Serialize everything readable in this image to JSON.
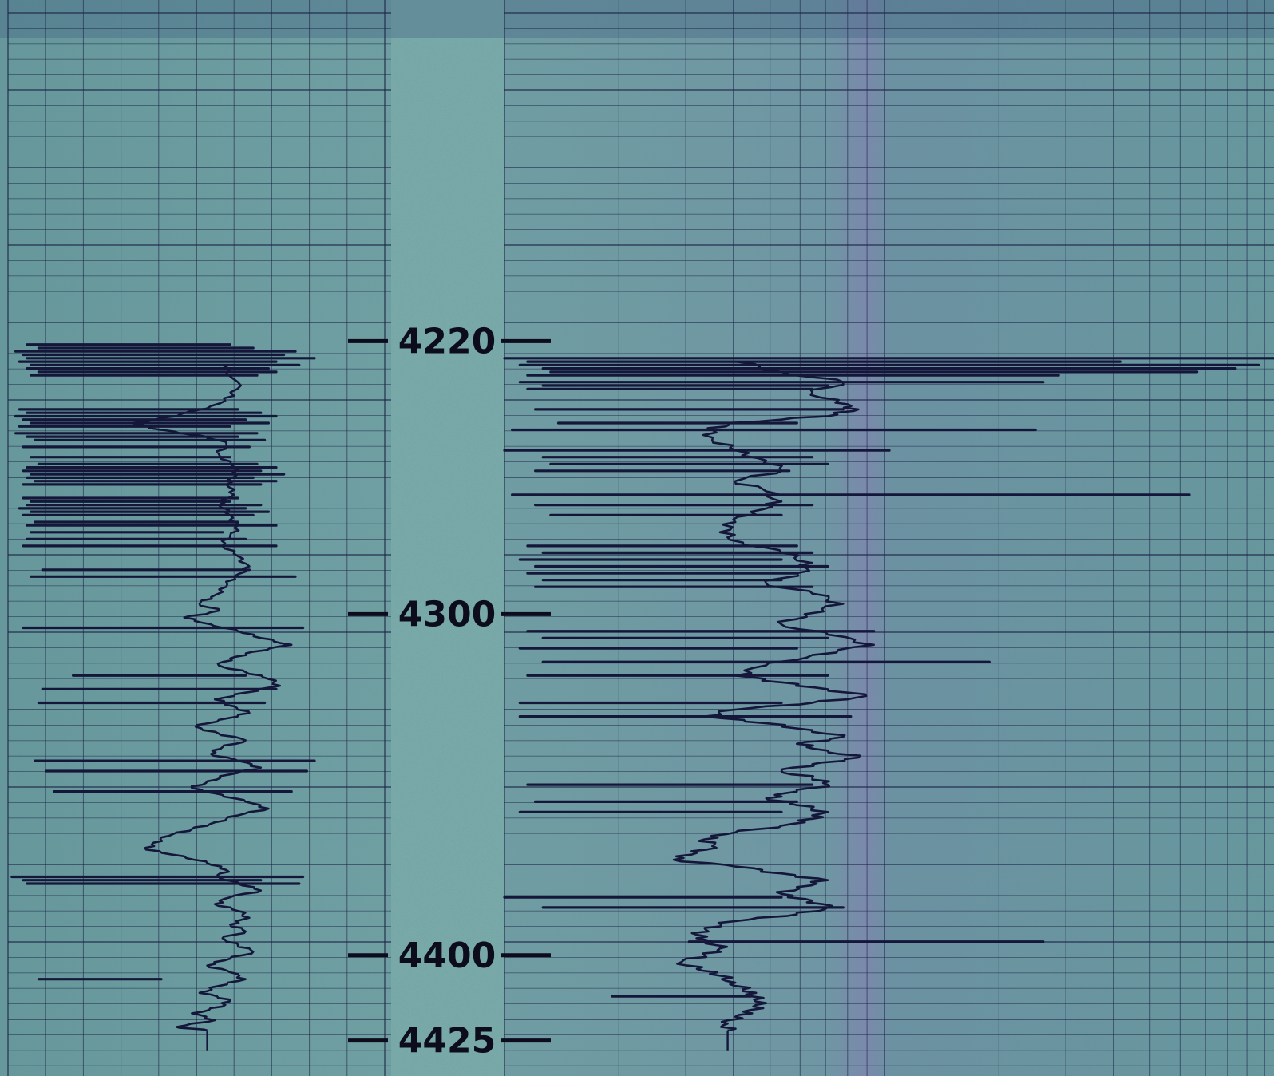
{
  "chart_data": {
    "type": "line",
    "title": "",
    "xlabel": "",
    "ylabel": "",
    "depth_axis": {
      "unit": "",
      "range": [
        4120,
        4430
      ],
      "labels": [
        "4220",
        "4300",
        "4400",
        "4425"
      ],
      "label_values": [
        4220,
        4300,
        4400,
        4425
      ],
      "increasing": "down"
    },
    "tracks": [
      {
        "track": "left",
        "trace": [
          [
            4227,
            0.56
          ],
          [
            4232,
            0.6
          ],
          [
            4236,
            0.59
          ],
          [
            4239,
            0.53
          ],
          [
            4242,
            0.44
          ],
          [
            4244,
            0.32
          ],
          [
            4246,
            0.4
          ],
          [
            4248,
            0.52
          ],
          [
            4250,
            0.57
          ],
          [
            4253,
            0.55
          ],
          [
            4256,
            0.58
          ],
          [
            4259,
            0.6
          ],
          [
            4262,
            0.57
          ],
          [
            4265,
            0.59
          ],
          [
            4268,
            0.55
          ],
          [
            4271,
            0.58
          ],
          [
            4274,
            0.6
          ],
          [
            4277,
            0.58
          ],
          [
            4280,
            0.56
          ],
          [
            4283,
            0.6
          ],
          [
            4286,
            0.63
          ],
          [
            4289,
            0.59
          ],
          [
            4292,
            0.57
          ],
          [
            4295,
            0.53
          ],
          [
            4297,
            0.5
          ],
          [
            4299,
            0.55
          ],
          [
            4301,
            0.46
          ],
          [
            4303,
            0.53
          ],
          [
            4305,
            0.6
          ],
          [
            4307,
            0.66
          ],
          [
            4309,
            0.74
          ],
          [
            4311,
            0.64
          ],
          [
            4313,
            0.58
          ],
          [
            4315,
            0.55
          ],
          [
            4317,
            0.62
          ],
          [
            4319,
            0.68
          ],
          [
            4321,
            0.71
          ],
          [
            4323,
            0.62
          ],
          [
            4325,
            0.54
          ],
          [
            4327,
            0.59
          ],
          [
            4329,
            0.63
          ],
          [
            4331,
            0.55
          ],
          [
            4333,
            0.49
          ],
          [
            4335,
            0.55
          ],
          [
            4337,
            0.62
          ],
          [
            4339,
            0.56
          ],
          [
            4341,
            0.53
          ],
          [
            4343,
            0.6
          ],
          [
            4345,
            0.66
          ],
          [
            4347,
            0.58
          ],
          [
            4349,
            0.52
          ],
          [
            4351,
            0.48
          ],
          [
            4353,
            0.56
          ],
          [
            4355,
            0.62
          ],
          [
            4357,
            0.68
          ],
          [
            4359,
            0.6
          ],
          [
            4361,
            0.54
          ],
          [
            4363,
            0.48
          ],
          [
            4365,
            0.42
          ],
          [
            4367,
            0.38
          ],
          [
            4369,
            0.36
          ],
          [
            4371,
            0.46
          ],
          [
            4373,
            0.52
          ],
          [
            4375,
            0.57
          ],
          [
            4377,
            0.55
          ],
          [
            4379,
            0.6
          ],
          [
            4381,
            0.66
          ],
          [
            4383,
            0.58
          ],
          [
            4385,
            0.54
          ],
          [
            4387,
            0.6
          ],
          [
            4389,
            0.63
          ],
          [
            4391,
            0.58
          ],
          [
            4393,
            0.62
          ],
          [
            4395,
            0.56
          ],
          [
            4397,
            0.6
          ],
          [
            4399,
            0.64
          ],
          [
            4401,
            0.58
          ],
          [
            4403,
            0.52
          ],
          [
            4405,
            0.58
          ],
          [
            4407,
            0.62
          ],
          [
            4409,
            0.55
          ],
          [
            4411,
            0.5
          ],
          [
            4413,
            0.58
          ],
          [
            4415,
            0.56
          ],
          [
            4417,
            0.48
          ],
          [
            4419,
            0.54
          ],
          [
            4421,
            0.44
          ],
          [
            4422,
            0.52
          ]
        ],
        "excursions": [
          [
            4221,
            0.05,
            0.58
          ],
          [
            4222,
            0.08,
            0.64
          ],
          [
            4223,
            0.02,
            0.75
          ],
          [
            4224,
            0.04,
            0.72
          ],
          [
            4225,
            0.05,
            0.8
          ],
          [
            4226,
            0.03,
            0.7
          ],
          [
            4227,
            0.06,
            0.76
          ],
          [
            4228,
            0.05,
            0.68
          ],
          [
            4229,
            0.08,
            0.7
          ],
          [
            4230,
            0.06,
            0.65
          ],
          [
            4240,
            0.03,
            0.6
          ],
          [
            4241,
            0.05,
            0.66
          ],
          [
            4242,
            0.02,
            0.7
          ],
          [
            4243,
            0.04,
            0.62
          ],
          [
            4244,
            0.06,
            0.68
          ],
          [
            4245,
            0.03,
            0.58
          ],
          [
            4247,
            0.02,
            0.65
          ],
          [
            4248,
            0.05,
            0.6
          ],
          [
            4249,
            0.07,
            0.67
          ],
          [
            4251,
            0.04,
            0.63
          ],
          [
            4254,
            0.06,
            0.58
          ],
          [
            4256,
            0.08,
            0.65
          ],
          [
            4257,
            0.05,
            0.7
          ],
          [
            4258,
            0.04,
            0.66
          ],
          [
            4259,
            0.06,
            0.72
          ],
          [
            4260,
            0.05,
            0.64
          ],
          [
            4261,
            0.07,
            0.7
          ],
          [
            4262,
            0.04,
            0.66
          ],
          [
            4266,
            0.04,
            0.6
          ],
          [
            4267,
            0.06,
            0.58
          ],
          [
            4268,
            0.05,
            0.66
          ],
          [
            4269,
            0.03,
            0.62
          ],
          [
            4270,
            0.06,
            0.68
          ],
          [
            4271,
            0.04,
            0.64
          ],
          [
            4273,
            0.07,
            0.6
          ],
          [
            4274,
            0.05,
            0.7
          ],
          [
            4276,
            0.06,
            0.56
          ],
          [
            4278,
            0.05,
            0.62
          ],
          [
            4280,
            0.04,
            0.7
          ],
          [
            4287,
            0.09,
            0.63
          ],
          [
            4289,
            0.06,
            0.75
          ],
          [
            4304,
            0.04,
            0.77
          ],
          [
            4318,
            0.17,
            0.62
          ],
          [
            4322,
            0.09,
            0.7
          ],
          [
            4326,
            0.08,
            0.67
          ],
          [
            4343,
            0.07,
            0.8
          ],
          [
            4346,
            0.1,
            0.78
          ],
          [
            4352,
            0.12,
            0.74
          ],
          [
            4377,
            0.01,
            0.77
          ],
          [
            4378,
            0.04,
            0.66
          ],
          [
            4379,
            0.05,
            0.76
          ],
          [
            4407,
            0.08,
            0.4
          ]
        ]
      },
      {
        "track": "right",
        "trace": [
          [
            4226,
            0.3
          ],
          [
            4229,
            0.36
          ],
          [
            4232,
            0.44
          ],
          [
            4235,
            0.4
          ],
          [
            4238,
            0.43
          ],
          [
            4240,
            0.46
          ],
          [
            4242,
            0.42
          ],
          [
            4244,
            0.29
          ],
          [
            4246,
            0.27
          ],
          [
            4249,
            0.27
          ],
          [
            4252,
            0.3
          ],
          [
            4255,
            0.34
          ],
          [
            4258,
            0.36
          ],
          [
            4261,
            0.3
          ],
          [
            4264,
            0.34
          ],
          [
            4267,
            0.36
          ],
          [
            4270,
            0.32
          ],
          [
            4273,
            0.3
          ],
          [
            4276,
            0.28
          ],
          [
            4279,
            0.31
          ],
          [
            4282,
            0.36
          ],
          [
            4285,
            0.4
          ],
          [
            4288,
            0.38
          ],
          [
            4291,
            0.34
          ],
          [
            4294,
            0.4
          ],
          [
            4297,
            0.44
          ],
          [
            4300,
            0.39
          ],
          [
            4303,
            0.36
          ],
          [
            4306,
            0.42
          ],
          [
            4309,
            0.48
          ],
          [
            4312,
            0.4
          ],
          [
            4315,
            0.34
          ],
          [
            4318,
            0.3
          ],
          [
            4320,
            0.36
          ],
          [
            4322,
            0.42
          ],
          [
            4324,
            0.47
          ],
          [
            4326,
            0.4
          ],
          [
            4328,
            0.3
          ],
          [
            4330,
            0.26
          ],
          [
            4332,
            0.34
          ],
          [
            4334,
            0.4
          ],
          [
            4336,
            0.44
          ],
          [
            4338,
            0.38
          ],
          [
            4340,
            0.42
          ],
          [
            4342,
            0.46
          ],
          [
            4344,
            0.4
          ],
          [
            4346,
            0.36
          ],
          [
            4348,
            0.4
          ],
          [
            4350,
            0.42
          ],
          [
            4352,
            0.38
          ],
          [
            4354,
            0.34
          ],
          [
            4356,
            0.38
          ],
          [
            4358,
            0.42
          ],
          [
            4360,
            0.4
          ],
          [
            4362,
            0.36
          ],
          [
            4364,
            0.3
          ],
          [
            4366,
            0.26
          ],
          [
            4368,
            0.27
          ],
          [
            4370,
            0.25
          ],
          [
            4372,
            0.22
          ],
          [
            4374,
            0.3
          ],
          [
            4376,
            0.36
          ],
          [
            4378,
            0.42
          ],
          [
            4380,
            0.38
          ],
          [
            4382,
            0.36
          ],
          [
            4384,
            0.4
          ],
          [
            4386,
            0.42
          ],
          [
            4388,
            0.38
          ],
          [
            4390,
            0.3
          ],
          [
            4392,
            0.26
          ],
          [
            4394,
            0.25
          ],
          [
            4396,
            0.27
          ],
          [
            4398,
            0.28
          ],
          [
            4400,
            0.26
          ],
          [
            4402,
            0.23
          ],
          [
            4404,
            0.25
          ],
          [
            4406,
            0.28
          ],
          [
            4408,
            0.3
          ],
          [
            4410,
            0.31
          ],
          [
            4412,
            0.32
          ],
          [
            4414,
            0.34
          ],
          [
            4416,
            0.32
          ],
          [
            4418,
            0.3
          ],
          [
            4420,
            0.29
          ],
          [
            4422,
            0.29
          ]
        ],
        "excursions": [
          [
            4225,
            0.0,
            1.0
          ],
          [
            4226,
            0.03,
            0.8
          ],
          [
            4227,
            0.02,
            0.98
          ],
          [
            4228,
            0.05,
            0.95
          ],
          [
            4229,
            0.06,
            0.9
          ],
          [
            4230,
            0.03,
            0.72
          ],
          [
            4232,
            0.02,
            0.7
          ],
          [
            4233,
            0.05,
            0.42
          ],
          [
            4234,
            0.03,
            0.4
          ],
          [
            4240,
            0.04,
            0.44
          ],
          [
            4244,
            0.07,
            0.38
          ],
          [
            4246,
            0.01,
            0.69
          ],
          [
            4252,
            0.0,
            0.5
          ],
          [
            4254,
            0.05,
            0.4
          ],
          [
            4256,
            0.06,
            0.42
          ],
          [
            4258,
            0.04,
            0.37
          ],
          [
            4265,
            0.01,
            0.89
          ],
          [
            4268,
            0.04,
            0.4
          ],
          [
            4271,
            0.06,
            0.36
          ],
          [
            4280,
            0.03,
            0.38
          ],
          [
            4282,
            0.05,
            0.4
          ],
          [
            4284,
            0.02,
            0.36
          ],
          [
            4286,
            0.04,
            0.42
          ],
          [
            4288,
            0.03,
            0.38
          ],
          [
            4290,
            0.05,
            0.36
          ],
          [
            4292,
            0.04,
            0.4
          ],
          [
            4305,
            0.03,
            0.48
          ],
          [
            4307,
            0.05,
            0.42
          ],
          [
            4310,
            0.02,
            0.38
          ],
          [
            4314,
            0.05,
            0.63
          ],
          [
            4318,
            0.03,
            0.42
          ],
          [
            4326,
            0.02,
            0.36
          ],
          [
            4330,
            0.02,
            0.45
          ],
          [
            4350,
            0.03,
            0.4
          ],
          [
            4355,
            0.04,
            0.38
          ],
          [
            4358,
            0.02,
            0.36
          ],
          [
            4383,
            0.0,
            0.36
          ],
          [
            4386,
            0.05,
            0.44
          ],
          [
            4396,
            0.24,
            0.7
          ],
          [
            4412,
            0.14,
            0.32
          ]
        ]
      }
    ],
    "grid": true,
    "legend": "none"
  }
}
